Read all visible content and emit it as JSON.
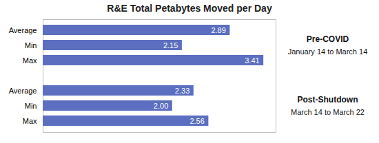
{
  "chart_data": {
    "type": "bar",
    "orientation": "horizontal",
    "title": "R&E Total Petabytes Moved per Day",
    "categories": [
      "Average",
      "Min",
      "Max",
      "Average",
      "Min",
      "Max"
    ],
    "values": [
      2.89,
      2.15,
      3.41,
      2.33,
      2.0,
      2.56
    ],
    "value_labels": [
      "2.89",
      "2.15",
      "3.41",
      "2.33",
      "2.00",
      "2.56"
    ],
    "color": "#5B6EBF",
    "xlim": [
      0,
      3.6
    ],
    "xticks": [],
    "tick_labels": "y",
    "data_labels": true,
    "annotations": [
      {
        "title": "Pre-COVID",
        "text": "January 14 to March 14"
      },
      {
        "title": "Post-Shutdown",
        "text": "March 14 to March 22"
      }
    ]
  }
}
